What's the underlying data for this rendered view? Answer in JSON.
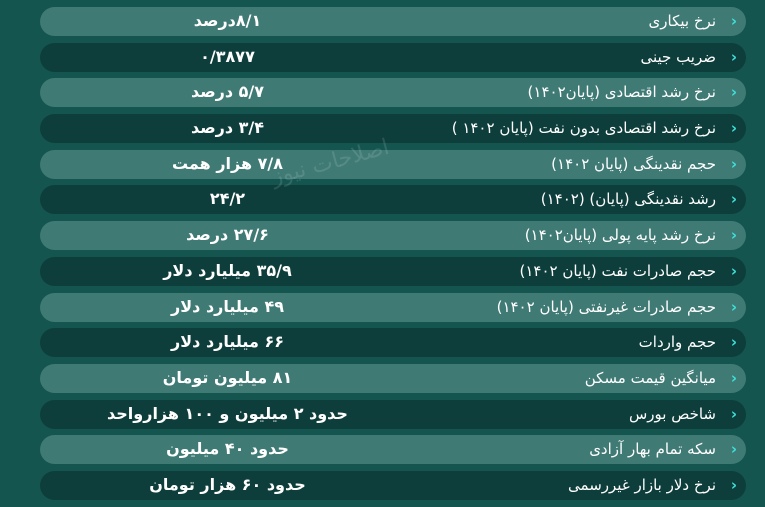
{
  "colors": {
    "background": "#145550",
    "row_light": "#3f7a75",
    "row_dark": "#0e3e3b",
    "arrow": "#3fe0da",
    "text": "#ffffff"
  },
  "watermark": "اصلاحات نیوز",
  "rows": [
    {
      "label": "نرخ بیکاری",
      "value": "۸/۱درصد"
    },
    {
      "label": "ضریب جینی",
      "value": "۰/۳۸۷۷"
    },
    {
      "label": "نرخ رشد اقتصادی (پایان۱۴۰۲)",
      "value": "۵/۷ درصد"
    },
    {
      "label": "نرخ رشد اقتصادی بدون نفت (پایان ۱۴۰۲ )",
      "value": "۳/۴ درصد"
    },
    {
      "label": "حجم نقدینگی (پایان ۱۴۰۲)",
      "value": "۷/۸ هزار همت"
    },
    {
      "label": "رشد نقدینگی (پایان) (۱۴۰۲)",
      "value": "۲۴/۲"
    },
    {
      "label": "نرخ رشد پایه پولی (پایان۱۴۰۲)",
      "value": "۲۷/۶ درصد"
    },
    {
      "label": "حجم صادرات نفت (پایان ۱۴۰۲)",
      "value": "۳۵/۹ میلیارد دلار"
    },
    {
      "label": "حجم صادرات غیرنفتی (پایان ۱۴۰۲)",
      "value": "۴۹ میلیارد دلار"
    },
    {
      "label": "حجم واردات",
      "value": "۶۶ میلیارد دلار"
    },
    {
      "label": "میانگین قیمت مسکن",
      "value": "۸۱ میلیون تومان"
    },
    {
      "label": "شاخص بورس",
      "value": "حدود ۲ میلیون و ۱۰۰ هزارواحد"
    },
    {
      "label": "سکه تمام بهار آزادی",
      "value": "حدود ۴۰ میلیون"
    },
    {
      "label": "نرخ دلار بازار غیررسمی",
      "value": "حدود ۶۰ هزار تومان"
    }
  ]
}
